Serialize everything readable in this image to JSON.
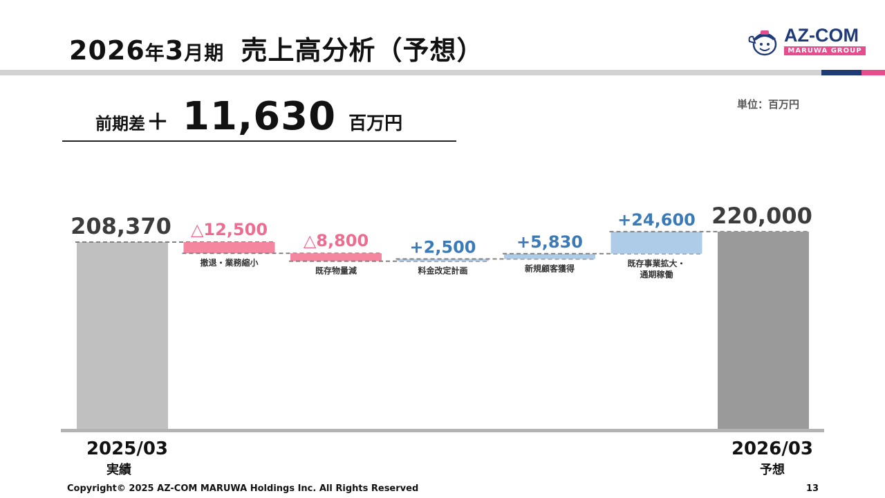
{
  "header": {
    "title_year": "2026",
    "title_nen": "年",
    "title_month": "3",
    "title_ki": "月期",
    "title_main": "売上高分析（予想）"
  },
  "logo": {
    "name": "AZ-COM",
    "group": "MARUWA GROUP"
  },
  "unit": "単位：百万円",
  "difference": {
    "prefix": "前期差",
    "sign": "＋",
    "value": "11,630",
    "suffix": "百万円"
  },
  "colors": {
    "base_start": "#c0c0c0",
    "base_end": "#9a9a9a",
    "decrease": "#f5869f",
    "increase": "#aecbe8",
    "decrease_text": "#ef6b8f",
    "increase_text": "#3a7ab8",
    "base_text": "#3c3c3c"
  },
  "chart_data": {
    "type": "bar",
    "subtype": "waterfall",
    "unit": "百万円",
    "categories": [
      "2025/03 実績",
      "撤退・業務縮小",
      "既存物量減",
      "料金改定計画",
      "新規顧客獲得",
      "既存事業拡大・通期稼働",
      "2026/03 予想"
    ],
    "values": [
      208370,
      -12500,
      -8800,
      2500,
      5830,
      24600,
      220000
    ],
    "data_labels": [
      "208,370",
      "△12,500",
      "△8,800",
      "+2,500",
      "+5,830",
      "+24,600",
      "220,000"
    ],
    "bars": [
      {
        "kind": "total",
        "value": 208370,
        "label": "208,370",
        "axis_label": "2025/03",
        "axis_sub": "実績"
      },
      {
        "kind": "decrease",
        "value": -12500,
        "label": "△12,500",
        "category": [
          "撤退・業務縮小"
        ]
      },
      {
        "kind": "decrease",
        "value": -8800,
        "label": "△8,800",
        "category": [
          "既存物量減"
        ]
      },
      {
        "kind": "increase",
        "value": 2500,
        "label": "+2,500",
        "category": [
          "料金改定計画"
        ]
      },
      {
        "kind": "increase",
        "value": 5830,
        "label": "+5,830",
        "category": [
          "新規顧客獲得"
        ]
      },
      {
        "kind": "increase",
        "value": 24600,
        "label": "+24,600",
        "category": [
          "既存事業拡大・",
          "通期稼働"
        ]
      },
      {
        "kind": "total",
        "value": 220000,
        "label": "220,000",
        "axis_label": "2026/03",
        "axis_sub": "予想"
      }
    ],
    "grid": false,
    "legend": "none"
  },
  "footer": {
    "copyright": "Copyright© 2025 AZ-COM MARUWA Holdings Inc. All Rights Reserved",
    "page": "13"
  }
}
